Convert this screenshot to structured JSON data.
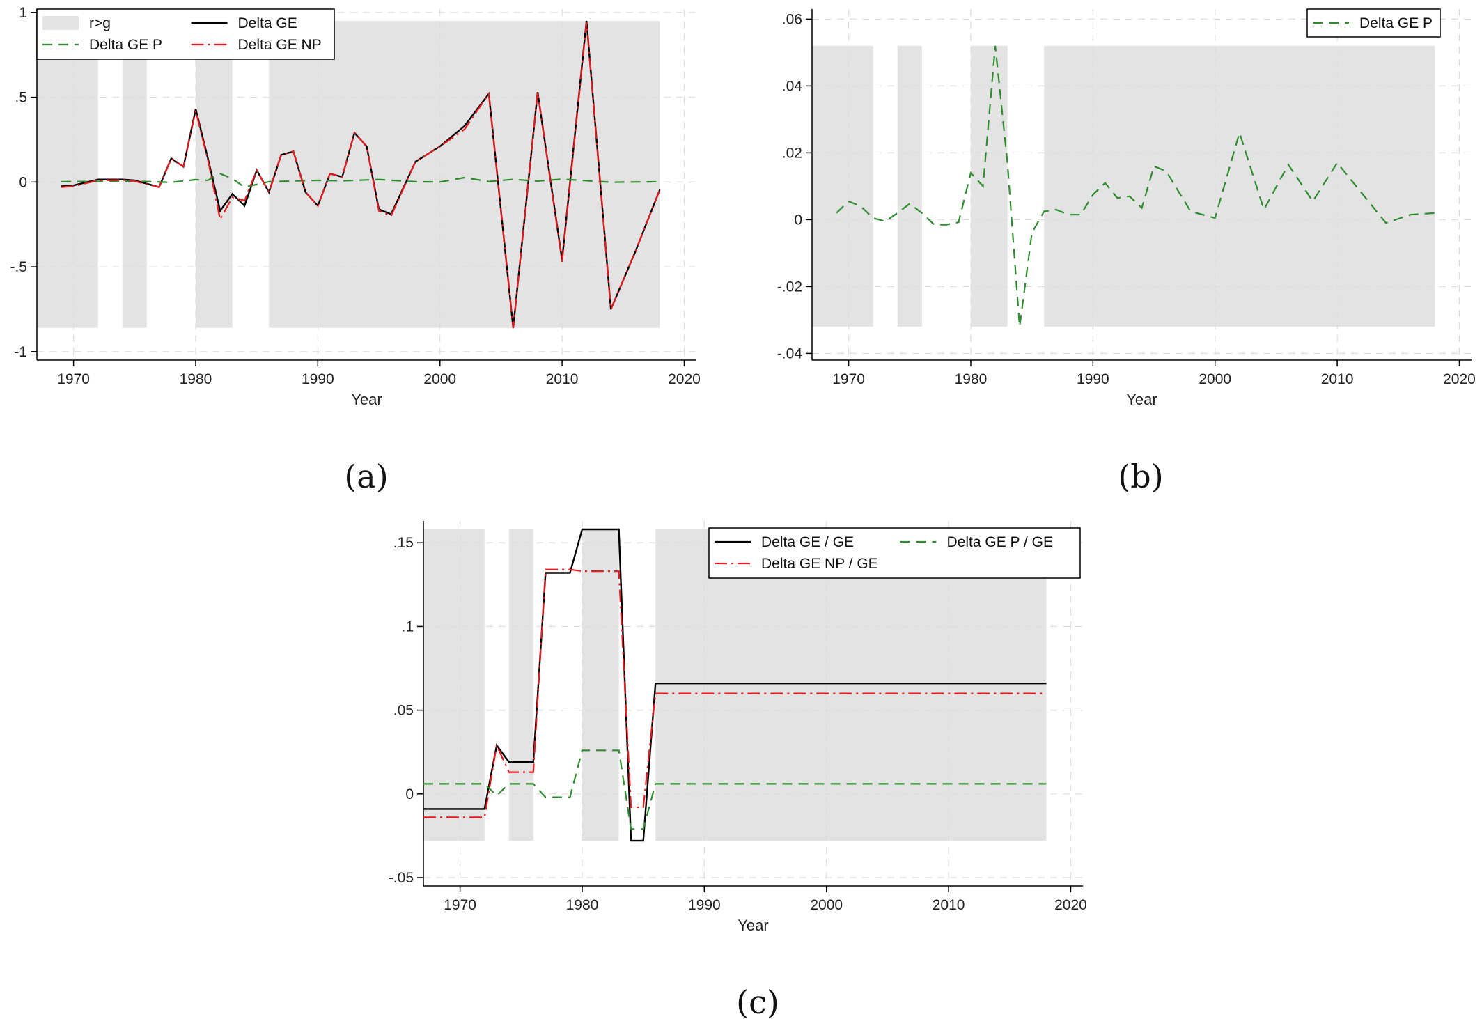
{
  "chart_data": [
    {
      "id": "a",
      "type": "line",
      "panel_label": "(a)",
      "xlabel": "Year",
      "xlim": [
        1967,
        2021
      ],
      "ylim": [
        -1.05,
        1.02
      ],
      "xticks": [
        1970,
        1980,
        1990,
        2000,
        2010,
        2020
      ],
      "yticks": [
        {
          "v": 1,
          "t": "1"
        },
        {
          "v": 0.5,
          "t": ".5"
        },
        {
          "v": 0,
          "t": "0"
        },
        {
          "v": -0.5,
          "t": "-.5"
        },
        {
          "v": -1,
          "t": "-1"
        }
      ],
      "grid": true,
      "legend": {
        "position": "top-left",
        "columns": 2,
        "order": [
          "shade",
          "ge",
          "gep",
          "genp"
        ]
      },
      "shade": {
        "name": "r>g",
        "color": "#e3e3e3",
        "ybottom": -0.86,
        "ytop": 0.95,
        "periods": [
          [
            1967,
            1972
          ],
          [
            1974,
            1976
          ],
          [
            1980,
            1983
          ],
          [
            1986,
            2018
          ]
        ]
      },
      "series": [
        {
          "key": "ge",
          "name": "Delta GE",
          "color": "#000000",
          "dash": "",
          "x": [
            1969,
            1970,
            1972,
            1974,
            1975,
            1977,
            1978,
            1979,
            1980,
            1981,
            1982,
            1983,
            1984,
            1985,
            1986,
            1987,
            1988,
            1989,
            1990,
            1991,
            1992,
            1993,
            1994,
            1995,
            1996,
            1998,
            2000,
            2002,
            2004,
            2006,
            2008,
            2010,
            2012,
            2014,
            2016,
            2018
          ],
          "y": [
            -0.025,
            -0.02,
            0.015,
            0.015,
            0.01,
            -0.03,
            0.14,
            0.09,
            0.43,
            0.14,
            -0.17,
            -0.07,
            -0.14,
            0.07,
            -0.06,
            0.16,
            0.18,
            -0.06,
            -0.14,
            0.05,
            0.03,
            0.29,
            0.21,
            -0.16,
            -0.19,
            0.12,
            0.21,
            0.33,
            0.52,
            -0.86,
            0.53,
            -0.46,
            0.95,
            -0.75,
            -0.41,
            -0.045
          ]
        },
        {
          "key": "gep",
          "name": "Delta GE P",
          "color": "#2e8b2e",
          "dash": "14,9",
          "x": [
            1969,
            1972,
            1975,
            1978,
            1980,
            1981,
            1982,
            1983,
            1984,
            1986,
            1990,
            1992,
            1995,
            1998,
            2000,
            2002,
            2004,
            2006,
            2008,
            2010,
            2012,
            2014,
            2018
          ],
          "y": [
            0.002,
            0.004,
            0.005,
            -0.002,
            0.014,
            0.01,
            0.05,
            0.02,
            -0.03,
            0.002,
            0.01,
            0.007,
            0.015,
            0.002,
            0.0,
            0.026,
            0.003,
            0.016,
            0.006,
            0.017,
            0.008,
            -0.001,
            0.002
          ]
        },
        {
          "key": "genp",
          "name": "Delta GE NP",
          "color": "#e8191f",
          "dash": "18,6,3,6",
          "x": [
            1969,
            1970,
            1972,
            1974,
            1975,
            1977,
            1978,
            1979,
            1980,
            1981,
            1982,
            1983,
            1984,
            1985,
            1986,
            1987,
            1988,
            1989,
            1990,
            1991,
            1992,
            1993,
            1994,
            1995,
            1996,
            1998,
            2000,
            2002,
            2004,
            2006,
            2008,
            2010,
            2012,
            2014,
            2016,
            2018
          ],
          "y": [
            -0.03,
            -0.025,
            0.01,
            0.012,
            0.005,
            -0.03,
            0.14,
            0.09,
            0.42,
            0.13,
            -0.22,
            -0.09,
            -0.11,
            0.07,
            -0.06,
            0.16,
            0.18,
            -0.06,
            -0.14,
            0.05,
            0.03,
            0.29,
            0.21,
            -0.17,
            -0.2,
            0.12,
            0.21,
            0.31,
            0.52,
            -0.86,
            0.53,
            -0.47,
            0.94,
            -0.75,
            -0.41,
            -0.045
          ]
        }
      ]
    },
    {
      "id": "b",
      "type": "line",
      "panel_label": "(b)",
      "xlabel": "Year",
      "xlim": [
        1967,
        2021
      ],
      "ylim": [
        -0.042,
        0.063
      ],
      "xticks": [
        1970,
        1980,
        1990,
        2000,
        2010,
        2020
      ],
      "yticks": [
        {
          "v": 0.06,
          "t": ".06"
        },
        {
          "v": 0.04,
          "t": ".04"
        },
        {
          "v": 0.02,
          "t": ".02"
        },
        {
          "v": 0,
          "t": "0"
        },
        {
          "v": -0.02,
          "t": "-.02"
        },
        {
          "v": -0.04,
          "t": "-.04"
        }
      ],
      "grid": true,
      "legend": {
        "position": "top-right",
        "columns": 1,
        "order": [
          "gep"
        ]
      },
      "shade": {
        "name": "",
        "color": "#e3e3e3",
        "ybottom": -0.032,
        "ytop": 0.052,
        "periods": [
          [
            1967,
            1972
          ],
          [
            1974,
            1976
          ],
          [
            1980,
            1983
          ],
          [
            1986,
            2018
          ]
        ]
      },
      "series": [
        {
          "key": "gep",
          "name": "Delta GE P",
          "color": "#2e8b2e",
          "dash": "14,9",
          "x": [
            1969,
            1970,
            1971,
            1972,
            1973,
            1974,
            1975,
            1976,
            1977,
            1978,
            1979,
            1980,
            1981,
            1982,
            1983,
            1984,
            1985,
            1986,
            1987,
            1988,
            1989,
            1990,
            1991,
            1992,
            1993,
            1994,
            1995,
            1996,
            1998,
            2000,
            2002,
            2004,
            2006,
            2008,
            2010,
            2012,
            2014,
            2016,
            2018
          ],
          "y": [
            0.002,
            0.0055,
            0.004,
            0.0005,
            -0.0005,
            0.002,
            0.0048,
            0.002,
            -0.0015,
            -0.0015,
            -0.0008,
            0.014,
            0.01,
            0.052,
            0.017,
            -0.032,
            -0.004,
            0.0025,
            0.003,
            0.0015,
            0.0015,
            0.0075,
            0.011,
            0.0065,
            0.007,
            0.0035,
            0.016,
            0.0145,
            0.0025,
            0.0005,
            0.026,
            0.003,
            0.0165,
            0.0055,
            0.017,
            0.008,
            -0.001,
            0.0015,
            0.002
          ]
        }
      ]
    },
    {
      "id": "c",
      "type": "line",
      "panel_label": "(c)",
      "xlabel": "Year",
      "xlim": [
        1967,
        2021
      ],
      "ylim": [
        -0.055,
        0.163
      ],
      "xticks": [
        1970,
        1980,
        1990,
        2000,
        2010,
        2020
      ],
      "yticks": [
        {
          "v": 0.15,
          "t": ".15"
        },
        {
          "v": 0.1,
          "t": ".1"
        },
        {
          "v": 0.05,
          "t": ".05"
        },
        {
          "v": 0,
          "t": "0"
        },
        {
          "v": -0.05,
          "t": "-.05"
        }
      ],
      "grid": true,
      "legend": {
        "position": "top-right",
        "columns": 2,
        "order": [
          "ge",
          "gep",
          "genp"
        ]
      },
      "shade": {
        "name": "",
        "color": "#e3e3e3",
        "ybottom": -0.028,
        "ytop": 0.158,
        "periods": [
          [
            1967,
            1972
          ],
          [
            1974,
            1976
          ],
          [
            1980,
            1983
          ],
          [
            1986,
            2018
          ]
        ]
      },
      "series": [
        {
          "key": "ge",
          "name": "Delta GE / GE",
          "color": "#000000",
          "dash": "",
          "x": [
            1967,
            1972,
            1973,
            1974,
            1976,
            1977,
            1979,
            1980,
            1983,
            1984,
            1985,
            1986,
            2018
          ],
          "y": [
            -0.009,
            -0.009,
            0.029,
            0.019,
            0.019,
            0.132,
            0.132,
            0.158,
            0.158,
            -0.028,
            -0.028,
            0.066,
            0.066
          ]
        },
        {
          "key": "gep",
          "name": "Delta GE P / GE",
          "color": "#2e8b2e",
          "dash": "14,9",
          "x": [
            1967,
            1972,
            1973,
            1974,
            1976,
            1977,
            1979,
            1980,
            1983,
            1984,
            1985,
            1986,
            2018
          ],
          "y": [
            0.006,
            0.006,
            -0.001,
            0.006,
            0.006,
            -0.002,
            -0.002,
            0.026,
            0.026,
            -0.021,
            -0.021,
            0.006,
            0.006
          ]
        },
        {
          "key": "genp",
          "name": "Delta GE NP / GE",
          "color": "#e8191f",
          "dash": "18,6,3,6",
          "x": [
            1967,
            1972,
            1973,
            1974,
            1976,
            1977,
            1979,
            1980,
            1983,
            1984,
            1985,
            1986,
            2018
          ],
          "y": [
            -0.014,
            -0.014,
            0.029,
            0.013,
            0.013,
            0.134,
            0.134,
            0.133,
            0.133,
            -0.008,
            -0.008,
            0.06,
            0.06
          ]
        }
      ]
    }
  ]
}
